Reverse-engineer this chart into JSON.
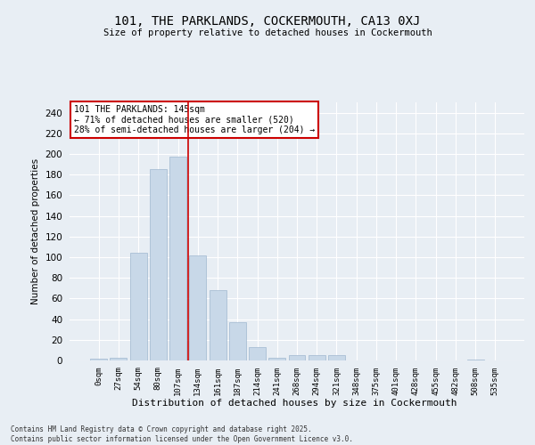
{
  "title1": "101, THE PARKLANDS, COCKERMOUTH, CA13 0XJ",
  "title2": "Size of property relative to detached houses in Cockermouth",
  "xlabel": "Distribution of detached houses by size in Cockermouth",
  "ylabel": "Number of detached properties",
  "bins": [
    "0sqm",
    "27sqm",
    "54sqm",
    "80sqm",
    "107sqm",
    "134sqm",
    "161sqm",
    "187sqm",
    "214sqm",
    "241sqm",
    "268sqm",
    "294sqm",
    "321sqm",
    "348sqm",
    "375sqm",
    "401sqm",
    "428sqm",
    "455sqm",
    "482sqm",
    "508sqm",
    "535sqm"
  ],
  "values": [
    2,
    3,
    104,
    185,
    197,
    102,
    68,
    37,
    13,
    3,
    5,
    5,
    5,
    0,
    0,
    0,
    0,
    0,
    0,
    1,
    0
  ],
  "bar_color": "#c8d8e8",
  "bar_edge_color": "#a0b8d0",
  "vline_color": "#cc0000",
  "vline_x_index": 4.5,
  "annotation_text": "101 THE PARKLANDS: 145sqm\n← 71% of detached houses are smaller (520)\n28% of semi-detached houses are larger (204) →",
  "annotation_box_color": "#ffffff",
  "annotation_box_edge": "#cc0000",
  "bg_color": "#e8eef4",
  "plot_bg_color": "#e8eef4",
  "grid_color": "#ffffff",
  "footer": "Contains HM Land Registry data © Crown copyright and database right 2025.\nContains public sector information licensed under the Open Government Licence v3.0.",
  "ylim": [
    0,
    250
  ],
  "yticks": [
    0,
    20,
    40,
    60,
    80,
    100,
    120,
    140,
    160,
    180,
    200,
    220,
    240
  ]
}
